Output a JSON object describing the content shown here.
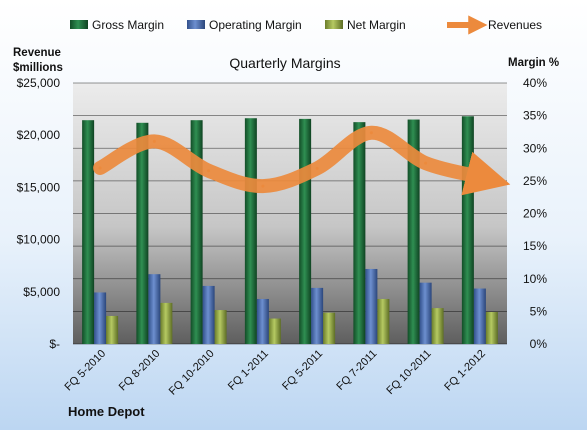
{
  "chart_data": {
    "type": "bar",
    "title": "Quarterly Margins",
    "y_left_label_lines": [
      "Revenue",
      "$millions"
    ],
    "y_right_label": "Margin %",
    "footer_label": "Home Depot",
    "legend_placement": "top",
    "grid": true,
    "categories": [
      "FQ 5-2010",
      "FQ 8-2010",
      "FQ 10-2010",
      "FQ 1-2011",
      "FQ 5-2011",
      "FQ 7-2011",
      "FQ 10-2011",
      "FQ 1-2012"
    ],
    "left_axis": {
      "ylim": [
        0,
        25000
      ],
      "tick_values": [
        0,
        5000,
        10000,
        15000,
        20000,
        25000
      ],
      "tick_labels": [
        "$-",
        "$5,000",
        "$10,000",
        "$15,000",
        "$20,000",
        "$25,000"
      ]
    },
    "right_axis": {
      "ylim": [
        0,
        40
      ],
      "tick_values": [
        0,
        5,
        10,
        15,
        20,
        25,
        30,
        35,
        40
      ],
      "tick_labels": [
        "0%",
        "5%",
        "10%",
        "15%",
        "20%",
        "25%",
        "30%",
        "35%",
        "40%"
      ]
    },
    "series": [
      {
        "name": "Gross Margin",
        "type": "bar",
        "axis": "right",
        "color": "#1e6b3a",
        "values": [
          34.3,
          33.9,
          34.3,
          34.6,
          34.5,
          34.0,
          34.4,
          34.9
        ]
      },
      {
        "name": "Operating Margin",
        "type": "bar",
        "axis": "right",
        "color": "#4a6cae",
        "values": [
          7.9,
          10.7,
          8.9,
          6.9,
          8.6,
          11.5,
          9.4,
          8.5
        ]
      },
      {
        "name": "Net Margin",
        "type": "bar",
        "axis": "right",
        "color": "#8fa53e",
        "values": [
          4.3,
          6.3,
          5.2,
          3.9,
          4.8,
          6.9,
          5.5,
          4.9
        ]
      },
      {
        "name": "Revenues",
        "type": "line",
        "axis": "left",
        "color": "#ec8a3d",
        "values": [
          16863,
          19410,
          16598,
          15126,
          16823,
          20232,
          17326,
          16017
        ]
      }
    ]
  }
}
